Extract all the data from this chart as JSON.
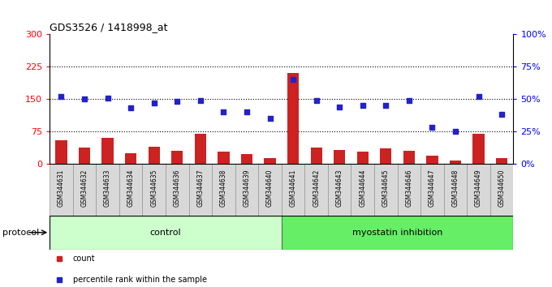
{
  "title": "GDS3526 / 1418998_at",
  "samples": [
    "GSM344631",
    "GSM344632",
    "GSM344633",
    "GSM344634",
    "GSM344635",
    "GSM344636",
    "GSM344637",
    "GSM344638",
    "GSM344639",
    "GSM344640",
    "GSM344641",
    "GSM344642",
    "GSM344643",
    "GSM344644",
    "GSM344645",
    "GSM344646",
    "GSM344647",
    "GSM344648",
    "GSM344649",
    "GSM344650"
  ],
  "counts": [
    55,
    38,
    60,
    25,
    40,
    30,
    70,
    27,
    22,
    13,
    210,
    38,
    32,
    28,
    35,
    30,
    18,
    8,
    70,
    13
  ],
  "percentile_ranks": [
    52,
    50,
    51,
    43,
    47,
    48,
    49,
    40,
    40,
    35,
    65,
    49,
    44,
    45,
    45,
    49,
    28,
    25,
    52,
    38
  ],
  "ylim_left": [
    0,
    300
  ],
  "ylim_right": [
    0,
    100
  ],
  "yticks_left": [
    0,
    75,
    150,
    225,
    300
  ],
  "yticks_right": [
    0,
    25,
    50,
    75,
    100
  ],
  "ytick_labels_right": [
    "0%",
    "25%",
    "50%",
    "75%",
    "100%"
  ],
  "hlines": [
    75,
    150,
    225
  ],
  "bar_color": "#cc2222",
  "dot_color": "#2222cc",
  "protocol_groups": [
    {
      "label": "control",
      "start": 0,
      "end": 10,
      "color": "#ccffcc"
    },
    {
      "label": "myostatin inhibition",
      "start": 10,
      "end": 20,
      "color": "#66ee66"
    }
  ],
  "legend_items": [
    {
      "label": "count",
      "color": "#cc2222"
    },
    {
      "label": "percentile rank within the sample",
      "color": "#2222cc"
    }
  ],
  "protocol_label": "protocol",
  "bar_width": 0.5
}
